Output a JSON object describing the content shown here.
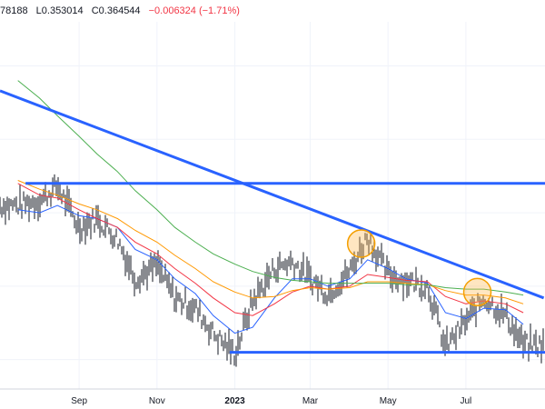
{
  "header": {
    "high": "78188",
    "low": "L0.353014",
    "close": "C0.364544",
    "change": "−0.006324 (−1.71%)"
  },
  "colors": {
    "price": "#131722",
    "ma_fast": "#2962ff",
    "ma_mid": "#f23645",
    "ma_slow": "#ff9800",
    "ma_long": "#4caf50",
    "trendlines": "#2962ff",
    "highlight_fill": "#ffb74d",
    "highlight_stroke": "#f59f00",
    "grid": "#f0f3fa"
  },
  "chart_data": {
    "type": "line",
    "title": "",
    "xlabel": "",
    "ylabel": "",
    "ylim": [
      0.33,
      0.58
    ],
    "x_ticks": [
      "Sep",
      "Nov",
      "2023",
      "Mar",
      "May",
      "Jul"
    ],
    "x": [
      "2022-07-15",
      "2022-08-01",
      "2022-08-15",
      "2022-09-01",
      "2022-09-15",
      "2022-10-01",
      "2022-10-15",
      "2022-11-01",
      "2022-11-15",
      "2022-12-01",
      "2022-12-15",
      "2023-01-01",
      "2023-01-15",
      "2023-02-01",
      "2023-02-15",
      "2023-03-01",
      "2023-03-15",
      "2023-04-01",
      "2023-04-15",
      "2023-05-01",
      "2023-05-15",
      "2023-06-01",
      "2023-06-15",
      "2023-07-01",
      "2023-07-15",
      "2023-08-01",
      "2023-08-15"
    ],
    "series": [
      {
        "values": [
          0.455,
          0.458,
          0.468,
          0.44,
          0.446,
          0.432,
          0.405,
          0.414,
          0.392,
          0.385,
          0.368,
          0.354,
          0.39,
          0.412,
          0.417,
          0.405,
          0.395,
          0.41,
          0.434,
          0.408,
          0.404,
          0.4,
          0.358,
          0.376,
          0.392,
          0.38,
          0.36
        ]
      },
      {
        "values": [
          0.452,
          0.45,
          0.455,
          0.448,
          0.446,
          0.44,
          0.425,
          0.418,
          0.405,
          0.395,
          0.38,
          0.368,
          0.372,
          0.392,
          0.405,
          0.405,
          0.4,
          0.405,
          0.418,
          0.412,
          0.405,
          0.402,
          0.382,
          0.378,
          0.385,
          0.384,
          0.374
        ]
      },
      {
        "values": [
          0.47,
          0.462,
          0.46,
          0.452,
          0.446,
          0.44,
          0.43,
          0.422,
          0.412,
          0.402,
          0.392,
          0.382,
          0.38,
          0.388,
          0.396,
          0.4,
          0.398,
          0.4,
          0.408,
          0.406,
          0.404,
          0.403,
          0.393,
          0.388,
          0.39,
          0.388,
          0.382
        ]
      },
      {
        "values": [
          0.472,
          0.466,
          0.462,
          0.456,
          0.452,
          0.446,
          0.438,
          0.43,
          0.421,
          0.412,
          0.403,
          0.396,
          0.392,
          0.393,
          0.397,
          0.399,
          0.398,
          0.399,
          0.403,
          0.403,
          0.402,
          0.401,
          0.397,
          0.394,
          0.394,
          0.392,
          0.388
        ]
      },
      {
        "values": [
          0.54,
          0.528,
          0.516,
          0.502,
          0.49,
          0.478,
          0.465,
          0.452,
          0.44,
          0.43,
          0.422,
          0.415,
          0.41,
          0.406,
          0.404,
          0.403,
          0.402,
          0.402,
          0.402,
          0.402,
          0.401,
          0.401,
          0.399,
          0.398,
          0.398,
          0.396,
          0.394
        ]
      }
    ],
    "annotations": {
      "trendline": [
        [
          "2022-07-01",
          0.533
        ],
        [
          "2023-08-31",
          0.392
        ]
      ],
      "resistance": 0.47,
      "support": 0.355,
      "highlight_points": [
        [
          "2023-04-10",
          0.429
        ],
        [
          "2023-07-10",
          0.396
        ]
      ]
    }
  }
}
